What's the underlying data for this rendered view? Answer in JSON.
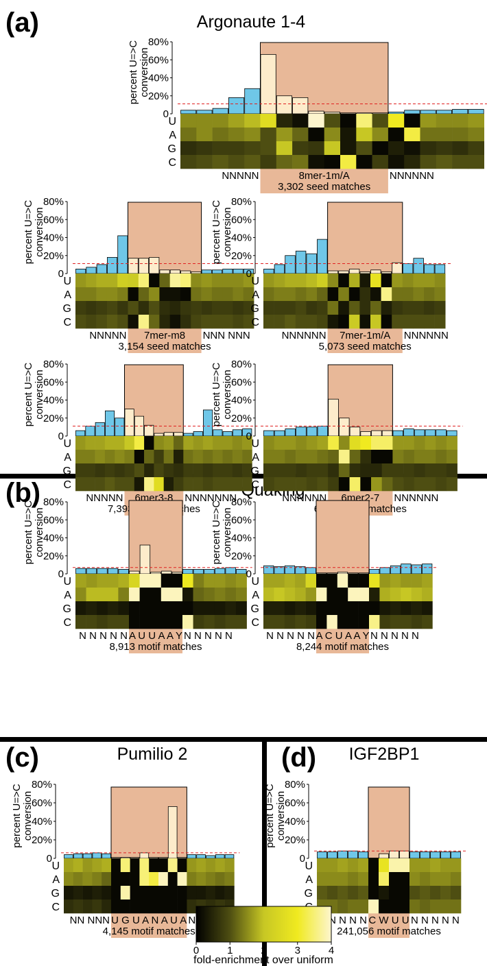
{
  "figure": {
    "y_axis_label": [
      "percent U=>C",
      "conversion"
    ],
    "y_tick_labels": [
      "0",
      "20%",
      "40%",
      "60%",
      "80%"
    ],
    "nucleotides": [
      "U",
      "A",
      "G",
      "C"
    ],
    "colors": {
      "bar_background": "#6fc7e8",
      "bar_motif": "#fdeccb",
      "motif_box": "#e8b898",
      "threshold_line": "#e02020"
    },
    "colorbar": {
      "ticks": [
        "0",
        "1",
        "2",
        "3",
        "4"
      ],
      "label": "fold-enrichment over uniform"
    }
  },
  "sections": [
    {
      "id": "(a)",
      "title": "Argonaute 1-4"
    },
    {
      "id": "(b)",
      "title": "Quaking"
    },
    {
      "id": "(c)",
      "title": "Pumilio 2"
    },
    {
      "id": "(d)",
      "title": "IGF2BP1"
    }
  ],
  "chart_data": [
    {
      "type": "bar",
      "section": "(a)",
      "ylabel": "percent U=>C conversion",
      "ylim": [
        0,
        0.8
      ],
      "threshold": 0.11,
      "motif_start": 5,
      "motif_len": 8,
      "sequence_left": "NNNNN",
      "motif_label": "8mer-1m/A",
      "sequence_right": "NNNNNN",
      "matches": "3,302 seed matches",
      "values": [
        0.04,
        0.04,
        0.06,
        0.18,
        0.28,
        0.66,
        0.2,
        0.18,
        0.03,
        0.02,
        0.01,
        0.01,
        0.01,
        0.02,
        0.04,
        0.04,
        0.04,
        0.05,
        0.05
      ],
      "heatmap": {
        "U": [
          1.5,
          1.5,
          1.5,
          1.7,
          1.9,
          2.6,
          0.5,
          0.2,
          4.0,
          1.0,
          0.1,
          3.5,
          1.0,
          3.0,
          0.1,
          1.6,
          1.5,
          1.5,
          1.6
        ],
        "A": [
          1.3,
          1.5,
          1.3,
          1.4,
          1.5,
          1.0,
          1.6,
          1.2,
          0.1,
          1.5,
          0.3,
          2.0,
          1.5,
          0.1,
          3.2,
          1.3,
          1.3,
          1.3,
          1.4
        ],
        "G": [
          0.6,
          0.7,
          0.8,
          0.8,
          0.9,
          1.0,
          2.0,
          0.8,
          0.7,
          2.0,
          0.3,
          1.0,
          0.1,
          0.4,
          0.2,
          0.6,
          0.7,
          0.6,
          0.8
        ],
        "C": [
          0.9,
          1.0,
          1.1,
          1.0,
          1.1,
          0.8,
          1.2,
          1.3,
          0.2,
          0.1,
          3.2,
          0.1,
          0.8,
          0.2,
          0.5,
          1.0,
          1.1,
          1.0,
          1.0
        ]
      }
    },
    {
      "type": "bar",
      "section": "(a)",
      "ylabel": "percent U=>C conversion",
      "ylim": [
        0,
        0.8
      ],
      "threshold": 0.11,
      "motif_start": 5,
      "motif_len": 7,
      "sequence_left": "NNNNN",
      "motif_label": "7mer-m8",
      "sequence_right": "NNN NNN",
      "matches": "3,154 seed matches",
      "values": [
        0.05,
        0.07,
        0.1,
        0.18,
        0.42,
        0.17,
        0.17,
        0.18,
        0.04,
        0.04,
        0.03,
        0.02,
        0.04,
        0.04,
        0.05,
        0.05,
        0.05
      ],
      "heatmap": {
        "U": [
          1.6,
          1.7,
          1.8,
          1.8,
          2.2,
          2.1,
          3.5,
          0.1,
          1.2,
          3.7,
          3.5,
          1.5,
          1.6,
          1.5,
          1.5,
          1.5,
          1.6
        ],
        "A": [
          1.4,
          1.4,
          1.5,
          1.5,
          1.4,
          0.1,
          1.2,
          1.5,
          0.2,
          0.2,
          0.1,
          1.3,
          1.4,
          1.3,
          1.3,
          1.4,
          1.3
        ],
        "G": [
          0.8,
          0.7,
          0.8,
          0.9,
          0.7,
          1.0,
          0.6,
          1.0,
          0.6,
          0.5,
          0.7,
          0.8,
          0.7,
          0.8,
          0.8,
          0.7,
          0.8
        ],
        "C": [
          1.0,
          0.9,
          1.0,
          1.1,
          1.0,
          0.2,
          3.6,
          1.2,
          0.5,
          0.2,
          0.6,
          0.9,
          1.0,
          1.0,
          1.0,
          0.9,
          1.0
        ]
      }
    },
    {
      "type": "bar",
      "section": "(a)",
      "ylabel": "percent U=>C conversion",
      "ylim": [
        0,
        0.8
      ],
      "threshold": 0.11,
      "motif_start": 6,
      "motif_len": 7,
      "sequence_left": "NNNNNN",
      "motif_label": "7mer-1m/A",
      "sequence_right": "NNNNNN",
      "matches": "5,073 seed matches",
      "values": [
        0.05,
        0.1,
        0.2,
        0.25,
        0.22,
        0.38,
        0.03,
        0.03,
        0.05,
        0.02,
        0.04,
        0.02,
        0.12,
        0.11,
        0.17,
        0.1,
        0.1
      ],
      "heatmap": {
        "U": [
          1.6,
          1.7,
          1.8,
          1.8,
          1.9,
          2.2,
          1.5,
          0.1,
          1.8,
          0.3,
          2.8,
          0.1,
          1.6,
          1.5,
          1.6,
          1.6,
          1.5
        ],
        "A": [
          1.3,
          1.4,
          1.4,
          1.3,
          1.4,
          1.2,
          0.1,
          1.4,
          0.1,
          0.6,
          0.2,
          3.6,
          1.3,
          1.3,
          1.4,
          1.3,
          1.4
        ],
        "G": [
          0.8,
          0.8,
          0.8,
          0.9,
          0.7,
          0.8,
          1.3,
          0.3,
          1.1,
          0.6,
          1.2,
          0.4,
          0.7,
          0.8,
          0.8,
          0.7,
          0.8
        ],
        "C": [
          1.0,
          1.0,
          1.1,
          1.0,
          1.0,
          0.9,
          0.3,
          0.1,
          2.1,
          0.2,
          2.0,
          0.1,
          1.0,
          1.0,
          1.0,
          1.0,
          1.0
        ]
      }
    },
    {
      "type": "bar",
      "section": "(a)",
      "ylabel": "percent U=>C conversion",
      "ylim": [
        0,
        0.8
      ],
      "threshold": 0.11,
      "motif_start": 5,
      "motif_len": 6,
      "sequence_left": "NNNNN",
      "motif_label": "6mer3-8",
      "sequence_right": "NNNNNNN",
      "matches": "7,393 seed matches",
      "values": [
        0.06,
        0.11,
        0.15,
        0.28,
        0.2,
        0.3,
        0.22,
        0.12,
        0.03,
        0.04,
        0.04,
        0.03,
        0.05,
        0.29,
        0.07,
        0.05,
        0.07,
        0.08
      ],
      "heatmap": {
        "U": [
          1.6,
          1.7,
          1.7,
          1.8,
          1.8,
          2.0,
          3.2,
          0.1,
          1.5,
          1.6,
          1.2,
          1.7,
          1.6,
          1.7,
          1.6,
          1.6,
          1.5,
          1.6
        ],
        "A": [
          1.4,
          1.4,
          1.5,
          1.4,
          1.5,
          1.4,
          0.1,
          1.2,
          0.8,
          1.3,
          0.4,
          1.3,
          1.4,
          1.3,
          1.4,
          1.3,
          1.4,
          1.3
        ],
        "G": [
          0.8,
          0.8,
          0.7,
          0.8,
          0.7,
          0.8,
          1.0,
          0.5,
          0.9,
          0.7,
          0.6,
          0.8,
          0.8,
          0.7,
          0.8,
          0.8,
          0.7,
          0.8
        ],
        "C": [
          1.0,
          1.0,
          1.0,
          1.1,
          1.0,
          1.0,
          0.3,
          3.6,
          2.6,
          0.4,
          0.8,
          1.0,
          1.0,
          0.9,
          1.0,
          1.0,
          1.0,
          1.0
        ]
      }
    },
    {
      "type": "bar",
      "section": "(a)",
      "ylabel": "percent U=>C conversion",
      "ylim": [
        0,
        0.8
      ],
      "threshold": 0.11,
      "motif_start": 6,
      "motif_len": 6,
      "sequence_left": "NNNNNN",
      "motif_label": "6mer2-7",
      "sequence_right": "NNNNNN",
      "matches": "6,661 seed matches",
      "values": [
        0.06,
        0.06,
        0.08,
        0.1,
        0.1,
        0.11,
        0.41,
        0.2,
        0.1,
        0.05,
        0.06,
        0.06,
        0.06,
        0.08,
        0.07,
        0.07,
        0.07,
        0.06
      ],
      "heatmap": {
        "U": [
          1.5,
          1.6,
          1.6,
          1.5,
          1.6,
          1.7,
          3.2,
          1.5,
          2.6,
          3.0,
          3.4,
          3.4,
          1.6,
          1.6,
          1.5,
          1.6,
          1.5,
          1.6
        ],
        "A": [
          1.4,
          1.4,
          1.3,
          1.4,
          1.4,
          1.3,
          1.2,
          3.6,
          1.2,
          0.6,
          0.1,
          0.1,
          1.4,
          1.3,
          1.4,
          1.4,
          1.3,
          1.4
        ],
        "G": [
          0.8,
          0.8,
          0.8,
          0.7,
          0.8,
          0.8,
          0.6,
          1.2,
          0.6,
          0.5,
          0.5,
          0.8,
          0.8,
          0.8,
          0.7,
          0.8,
          0.8,
          0.7
        ],
        "C": [
          0.9,
          1.0,
          1.0,
          1.0,
          0.9,
          1.0,
          0.8,
          0.1,
          3.4,
          0.1,
          1.6,
          1.2,
          1.0,
          0.9,
          1.0,
          1.0,
          0.9,
          1.0
        ]
      }
    },
    {
      "type": "bar",
      "section": "(b)",
      "ylabel": "percent U=>C conversion",
      "ylim": [
        0,
        0.8
      ],
      "threshold": 0.07,
      "motif_start": 5,
      "motif_len": 5,
      "sequence_left": "N N N N N",
      "motif_label": "A U U A A Y",
      "sequence_right": "N N N N N",
      "matches": "8,913 motif matches",
      "values": [
        0.06,
        0.06,
        0.06,
        0.06,
        0.05,
        0.03,
        0.32,
        0.02,
        0.03,
        0.02,
        0.05,
        0.05,
        0.05,
        0.06,
        0.07,
        0.05
      ],
      "heatmap": {
        "U": [
          1.7,
          1.6,
          1.7,
          1.7,
          1.8,
          2.4,
          3.9,
          3.9,
          0.1,
          0.1,
          2.9,
          1.4,
          1.6,
          1.6,
          1.5,
          1.6
        ],
        "A": [
          1.5,
          1.9,
          1.9,
          1.9,
          1.4,
          3.9,
          0.1,
          0.1,
          3.9,
          3.9,
          0.3,
          1.2,
          1.3,
          1.4,
          1.3,
          1.4
        ],
        "G": [
          0.3,
          0.4,
          0.3,
          0.4,
          0.3,
          0.1,
          0.1,
          0.1,
          0.1,
          0.1,
          0.1,
          0.3,
          0.3,
          0.3,
          0.4,
          0.3
        ],
        "C": [
          0.9,
          0.9,
          0.8,
          0.9,
          0.9,
          0.1,
          0.1,
          0.1,
          0.1,
          0.1,
          3.8,
          0.8,
          0.9,
          0.8,
          0.9,
          0.9
        ]
      }
    },
    {
      "type": "bar",
      "section": "(b)",
      "ylabel": "percent U=>C conversion",
      "ylim": [
        0,
        0.8
      ],
      "threshold": 0.07,
      "motif_start": 5,
      "motif_len": 5,
      "sequence_left": "N N N N N",
      "motif_label": "A C U A A Y",
      "sequence_right": "N N N N N",
      "matches": "8,244 motif matches",
      "values": [
        0.09,
        0.08,
        0.09,
        0.08,
        0.07,
        0.01,
        0.01,
        0.02,
        0.01,
        0.01,
        0.05,
        0.07,
        0.09,
        0.11,
        0.1,
        0.11
      ],
      "heatmap": {
        "U": [
          1.7,
          1.7,
          1.8,
          1.7,
          2.4,
          0.1,
          0.1,
          3.9,
          0.1,
          0.1,
          2.8,
          1.6,
          1.7,
          1.6,
          1.6,
          1.7
        ],
        "A": [
          1.9,
          2.0,
          1.9,
          1.8,
          1.6,
          3.9,
          0.1,
          0.1,
          3.9,
          3.9,
          0.4,
          1.8,
          1.9,
          2.0,
          1.9,
          1.8
        ],
        "G": [
          0.4,
          0.4,
          0.3,
          0.4,
          0.3,
          0.1,
          0.1,
          0.1,
          0.1,
          0.1,
          0.1,
          0.3,
          0.4,
          0.3,
          0.4,
          0.3
        ],
        "C": [
          0.9,
          0.9,
          0.8,
          0.9,
          0.8,
          0.1,
          3.9,
          0.1,
          0.1,
          0.1,
          3.6,
          0.8,
          0.9,
          0.9,
          0.8,
          0.9
        ]
      }
    },
    {
      "type": "bar",
      "section": "(c)",
      "ylabel": "percent U=>C conversion",
      "ylim": [
        0,
        0.8
      ],
      "threshold": 0.06,
      "motif_start": 5,
      "motif_len": 8,
      "sequence_left": "NN NNN",
      "motif_label": "U G U A N A U A",
      "sequence_right": "NNNNN",
      "matches": "4,145 motif matches",
      "values": [
        0.04,
        0.05,
        0.05,
        0.06,
        0.05,
        0.01,
        0.01,
        0.01,
        0.06,
        0.01,
        0.01,
        0.56,
        0.01,
        0.04,
        0.04,
        0.03,
        0.04,
        0.04
      ],
      "heatmap": {
        "U": [
          1.7,
          1.8,
          1.6,
          1.7,
          1.8,
          0.1,
          3.5,
          0.1,
          3.5,
          0.1,
          0.1,
          3.6,
          0.1,
          1.6,
          1.7,
          1.6,
          1.7,
          1.6
        ],
        "A": [
          1.5,
          1.4,
          1.5,
          1.4,
          1.2,
          0.1,
          0.1,
          0.1,
          3.5,
          3.2,
          3.9,
          0.1,
          3.9,
          1.4,
          1.5,
          1.4,
          1.3,
          1.4
        ],
        "G": [
          0.3,
          0.4,
          0.3,
          0.4,
          0.3,
          0.1,
          3.8,
          0.1,
          0.1,
          0.1,
          0.1,
          0.1,
          0.1,
          0.3,
          0.3,
          0.4,
          0.3,
          0.4
        ],
        "C": [
          0.6,
          0.7,
          0.6,
          0.7,
          0.5,
          0.1,
          0.1,
          0.1,
          0.1,
          0.1,
          0.1,
          0.1,
          0.1,
          0.6,
          0.7,
          0.6,
          0.7,
          0.6
        ]
      }
    },
    {
      "type": "bar",
      "section": "(d)",
      "ylabel": "percent U=>C conversion",
      "ylim": [
        0,
        0.8
      ],
      "threshold": 0.08,
      "motif_start": 5,
      "motif_len": 4,
      "sequence_left": "N N N N N",
      "motif_label": "C W U U",
      "sequence_right": "N N N N N",
      "matches": "241,056 motif matches",
      "values": [
        0.07,
        0.07,
        0.08,
        0.08,
        0.07,
        0.0,
        0.05,
        0.08,
        0.08,
        0.07,
        0.07,
        0.07,
        0.07,
        0.07
      ],
      "heatmap": {
        "U": [
          1.6,
          1.6,
          1.7,
          1.6,
          1.7,
          0.1,
          2.8,
          3.8,
          3.8,
          1.6,
          1.6,
          1.7,
          1.6,
          1.6
        ],
        "A": [
          1.5,
          1.5,
          1.5,
          1.4,
          1.5,
          0.1,
          3.4,
          0.1,
          0.1,
          1.5,
          1.4,
          1.5,
          1.5,
          1.4
        ],
        "G": [
          1.1,
          1.0,
          1.1,
          1.0,
          1.1,
          0.1,
          0.3,
          0.1,
          0.1,
          1.0,
          1.1,
          1.0,
          1.1,
          1.0
        ],
        "C": [
          1.3,
          1.3,
          1.2,
          1.3,
          1.3,
          3.9,
          0.1,
          0.1,
          0.1,
          1.3,
          1.2,
          1.3,
          1.3,
          1.3
        ]
      }
    }
  ]
}
